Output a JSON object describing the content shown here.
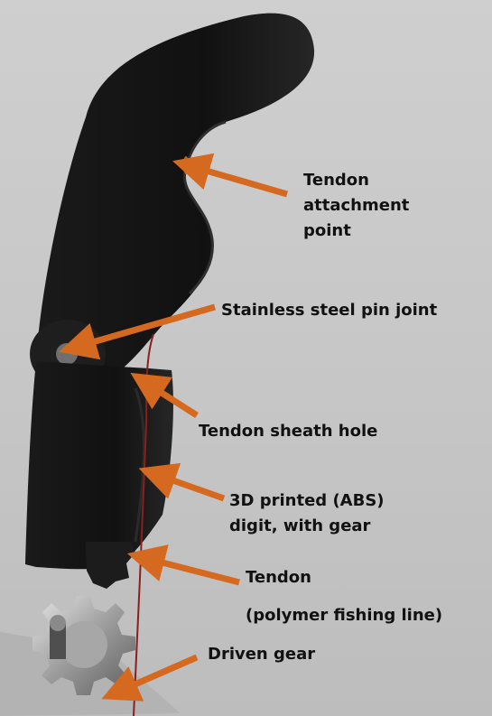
{
  "labels": {
    "tendon_attachment": [
      "Tendon",
      "attachment",
      "point"
    ],
    "pin_joint": "Stainless steel pin joint",
    "sheath_hole": "Tendon sheath hole",
    "digit": [
      "3D printed (ABS)",
      "digit, with gear"
    ],
    "tendon": [
      "Tendon",
      "(polymer fishing line)"
    ],
    "driven_gear": "Driven gear"
  },
  "colors": {
    "arrow": "#d4691f",
    "finger": "#151515",
    "tendon": "#8a1f1f",
    "background": "#c8c8c8",
    "gear": "#9a9a9a"
  }
}
